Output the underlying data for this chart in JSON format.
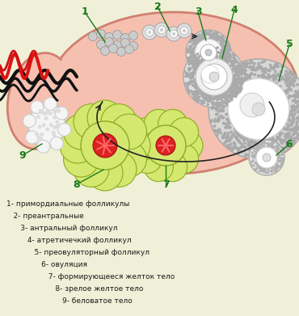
{
  "bg_color": "#f0f0d8",
  "label_color": "#1a7a1a",
  "text_color": "#1a1a1a",
  "title_lines": [
    "1- примордиальные фолликулы",
    "   2- преантральные",
    "      3- антральный фолликул",
    "         4- атретичечкий фолликул",
    "            5- преовуляторный фолликул",
    "               6- овуляция",
    "                  7- формирующееся желток тело",
    "                     8- зрелое желтое тело",
    "                        9- беловатое тело"
  ],
  "figsize": [
    3.7,
    3.91
  ],
  "dpi": 100
}
